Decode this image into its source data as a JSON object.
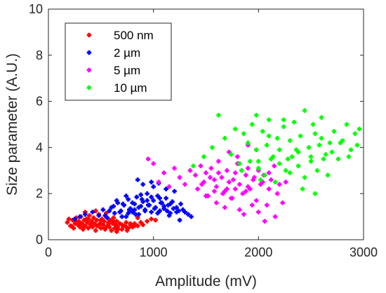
{
  "chart_data": {
    "type": "scatter",
    "title": "",
    "xlabel": "Amplitude (mV)",
    "ylabel": "Size parameter (A.U.)",
    "xlim": [
      0,
      3000
    ],
    "ylim": [
      0,
      10
    ],
    "xticks": [
      0,
      1000,
      2000,
      3000
    ],
    "yticks": [
      0,
      2,
      4,
      6,
      8,
      10
    ],
    "grid": false,
    "legend_position": "top-left",
    "series": [
      {
        "name": "500 nm",
        "color": "#ff0000",
        "x": [
          180,
          195,
          210,
          230,
          240,
          255,
          265,
          280,
          290,
          300,
          310,
          320,
          330,
          340,
          350,
          360,
          370,
          380,
          390,
          400,
          410,
          420,
          430,
          440,
          450,
          460,
          470,
          480,
          490,
          500,
          510,
          520,
          530,
          540,
          550,
          560,
          570,
          580,
          590,
          600,
          610,
          620,
          630,
          640,
          650,
          660,
          680,
          700,
          720,
          740,
          760,
          780,
          800,
          820,
          850,
          880,
          900,
          940,
          980,
          1020,
          220,
          260,
          300,
          340,
          380,
          420,
          460,
          500,
          540,
          580,
          620,
          660,
          700,
          740,
          780,
          820,
          350,
          450,
          550,
          650,
          750,
          850
        ],
        "y": [
          0.75,
          0.9,
          0.6,
          0.85,
          0.5,
          0.7,
          0.95,
          0.65,
          0.8,
          0.55,
          1.0,
          0.7,
          0.45,
          0.85,
          0.6,
          0.9,
          0.75,
          0.5,
          1.05,
          0.65,
          0.8,
          0.55,
          0.95,
          0.7,
          0.4,
          0.85,
          0.6,
          1.1,
          0.7,
          0.5,
          0.9,
          0.65,
          0.8,
          0.45,
          1.0,
          0.6,
          0.75,
          0.55,
          0.85,
          0.4,
          0.7,
          0.95,
          0.5,
          0.65,
          0.8,
          0.55,
          0.7,
          0.45,
          0.6,
          0.75,
          0.5,
          0.65,
          0.55,
          0.7,
          0.6,
          0.75,
          0.65,
          0.8,
          0.9,
          0.85,
          0.6,
          0.8,
          0.7,
          0.55,
          0.9,
          0.75,
          0.6,
          0.85,
          0.5,
          0.7,
          0.8,
          0.45,
          0.65,
          0.55,
          0.7,
          0.6,
          1.2,
          1.25,
          1.15,
          0.35,
          0.4,
          0.95
        ]
      },
      {
        "name": "2 µm",
        "color": "#0000ff",
        "x": [
          250,
          300,
          350,
          420,
          480,
          520,
          560,
          600,
          630,
          660,
          690,
          720,
          740,
          760,
          780,
          800,
          820,
          840,
          860,
          880,
          900,
          920,
          940,
          960,
          980,
          1000,
          1020,
          1040,
          1060,
          1080,
          1100,
          1120,
          1140,
          1160,
          1180,
          1200,
          1220,
          1240,
          1260,
          1280,
          1300,
          1330,
          1360,
          540,
          580,
          620,
          650,
          680,
          710,
          740,
          770,
          800,
          830,
          860,
          890,
          920,
          950,
          980,
          1010,
          1040,
          1070,
          1100,
          1130,
          1160,
          1190,
          1220,
          700,
          760,
          820,
          880,
          940,
          1000,
          1060,
          1120,
          900,
          980,
          1050,
          1150,
          1250,
          850
        ],
        "y": [
          0.9,
          1.0,
          1.1,
          1.2,
          1.05,
          1.3,
          0.95,
          1.4,
          1.15,
          1.6,
          1.25,
          1.5,
          1.0,
          1.75,
          1.35,
          1.2,
          1.55,
          1.85,
          1.1,
          1.45,
          1.65,
          1.3,
          2.0,
          1.5,
          1.2,
          1.7,
          1.4,
          1.9,
          1.25,
          1.6,
          1.35,
          1.8,
          1.5,
          1.15,
          1.65,
          2.1,
          1.4,
          1.25,
          1.55,
          1.3,
          1.2,
          1.1,
          1.0,
          1.05,
          1.25,
          1.45,
          1.7,
          1.2,
          1.55,
          1.9,
          1.3,
          1.6,
          1.1,
          1.4,
          1.75,
          1.25,
          1.5,
          1.85,
          1.35,
          1.15,
          1.6,
          1.45,
          1.25,
          1.55,
          1.35,
          1.2,
          1.0,
          1.15,
          1.3,
          1.95,
          1.7,
          2.3,
          1.8,
          2.2,
          2.4,
          2.5,
          2.45,
          1.05,
          0.85,
          2.6
        ]
      },
      {
        "name": "5 µm",
        "color": "#ff00ff",
        "x": [
          950,
          1000,
          1050,
          1100,
          1150,
          1200,
          1250,
          1300,
          1350,
          1400,
          1420,
          1450,
          1480,
          1500,
          1520,
          1550,
          1580,
          1600,
          1620,
          1650,
          1680,
          1700,
          1720,
          1750,
          1780,
          1800,
          1820,
          1850,
          1880,
          1900,
          1920,
          1950,
          1980,
          2000,
          2020,
          2050,
          2080,
          2100,
          2120,
          2150,
          2180,
          2200,
          2230,
          2260,
          1460,
          1540,
          1620,
          1700,
          1760,
          1840,
          1900,
          1960,
          2040,
          2100,
          1600,
          1680,
          1740,
          1820,
          1880,
          1940,
          2000,
          1500,
          1580,
          1660,
          1780,
          1860,
          2060,
          2160,
          1720,
          1800,
          1980,
          1900
        ],
        "y": [
          3.5,
          3.3,
          2.5,
          2.9,
          2.3,
          3.1,
          2.7,
          2.4,
          3.0,
          2.8,
          2.2,
          3.2,
          2.5,
          2.9,
          1.9,
          3.1,
          2.6,
          2.3,
          3.4,
          2.7,
          2.1,
          3.0,
          2.5,
          1.8,
          2.9,
          3.3,
          2.4,
          2.0,
          2.8,
          3.1,
          2.2,
          2.6,
          1.7,
          3.0,
          2.4,
          2.8,
          1.5,
          2.2,
          2.6,
          3.2,
          2.0,
          2.4,
          1.6,
          2.5,
          2.4,
          2.7,
          2.9,
          2.2,
          2.6,
          3.0,
          2.3,
          2.7,
          2.5,
          2.9,
          1.6,
          1.4,
          1.8,
          1.3,
          2.1,
          1.5,
          1.2,
          1.9,
          2.1,
          2.0,
          2.2,
          1.1,
          0.8,
          1.0,
          3.8,
          3.6,
          3.9,
          4.1
        ]
      },
      {
        "name": "10 µm",
        "color": "#00ff00",
        "x": [
          1380,
          1480,
          1560,
          1620,
          1680,
          1740,
          1780,
          1820,
          1860,
          1900,
          1940,
          1980,
          2000,
          2040,
          2080,
          2100,
          2140,
          2180,
          2200,
          2240,
          2280,
          2300,
          2340,
          2380,
          2400,
          2440,
          2480,
          2500,
          2540,
          2580,
          2600,
          2640,
          2680,
          2720,
          2760,
          2800,
          2840,
          2880,
          2920,
          2960,
          1840,
          1920,
          2000,
          2060,
          2120,
          2200,
          2260,
          2320,
          2380,
          2440,
          2500,
          2560,
          2620,
          2700,
          2780,
          2860,
          2940,
          2020,
          2160,
          2300,
          2420,
          2540,
          2660,
          1980,
          2240,
          2520,
          2100,
          2360,
          2600
        ],
        "y": [
          3.2,
          3.6,
          4.0,
          5.4,
          4.4,
          3.7,
          4.8,
          3.3,
          4.6,
          4.2,
          5.0,
          3.9,
          3.4,
          4.7,
          4.1,
          5.2,
          3.6,
          4.4,
          3.9,
          4.9,
          3.5,
          4.3,
          5.1,
          3.8,
          4.5,
          5.6,
          4.0,
          3.6,
          4.6,
          4.1,
          5.3,
          3.7,
          4.2,
          4.7,
          3.5,
          4.3,
          5.0,
          3.9,
          4.6,
          4.8,
          3.0,
          3.4,
          3.1,
          2.8,
          3.5,
          3.3,
          3.0,
          3.6,
          3.2,
          2.7,
          3.4,
          3.0,
          3.5,
          3.8,
          4.2,
          3.6,
          4.1,
          2.6,
          2.5,
          2.9,
          2.2,
          2.0,
          2.8,
          5.4,
          5.2,
          5.0,
          4.5,
          3.9,
          4.4
        ]
      }
    ]
  }
}
